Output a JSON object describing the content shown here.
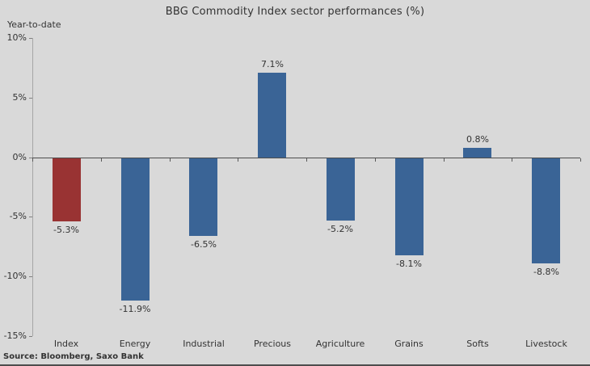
{
  "chart": {
    "title": "BBG Commodity Index sector performances (%)",
    "corner_label": "Year-to-date",
    "source": "Source: Bloomberg, Saxo Bank"
  },
  "chart_data": {
    "type": "bar",
    "title": "BBG Commodity Index sector performances (%)",
    "subtitle": "Year-to-date",
    "categories": [
      "Index",
      "Energy",
      "Industrial",
      "Precious",
      "Agriculture",
      "Grains",
      "Softs",
      "Livestock"
    ],
    "values": [
      -5.3,
      -11.9,
      -6.5,
      7.1,
      -5.2,
      -8.1,
      0.8,
      -8.8
    ],
    "value_labels": [
      "-5.3%",
      "-11.9%",
      "-6.5%",
      "7.1%",
      "-5.2%",
      "-8.1%",
      "0.8%",
      "-8.8%"
    ],
    "xlabel": "",
    "ylabel": "Year-to-date",
    "ylim": [
      -15,
      10
    ],
    "yticks": [
      10,
      5,
      0,
      -5,
      -10,
      -15
    ],
    "ytick_labels": [
      "10%",
      "5%",
      "0%",
      "-5%",
      "-10%",
      "-15%"
    ],
    "grid": false,
    "legend": false,
    "colors": {
      "background": "#d9d9d9",
      "default_bar": "#3a6496",
      "highlight_bar": "#993333",
      "highlight_index": 0,
      "zero_line": "#4d4d4d",
      "axis_line": "#a6a6a6",
      "text": "#333333"
    },
    "source": "Source: Bloomberg, Saxo Bank"
  }
}
